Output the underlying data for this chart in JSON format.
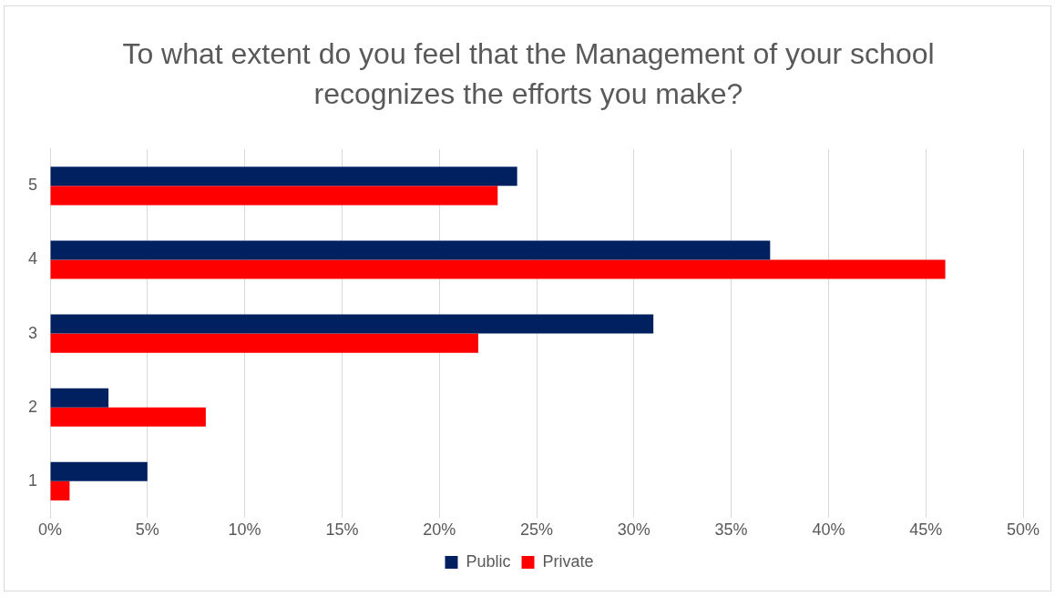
{
  "chart_data": {
    "type": "bar",
    "orientation": "horizontal",
    "title": "To what extent do you feel that the Management of your school recognizes the efforts you make?",
    "categories": [
      "5",
      "4",
      "3",
      "2",
      "1"
    ],
    "series": [
      {
        "name": "Public",
        "color": "#002060",
        "values": [
          24,
          37,
          31,
          3,
          5
        ]
      },
      {
        "name": "Private",
        "color": "#ff0000",
        "values": [
          23,
          46,
          22,
          8,
          1
        ]
      }
    ],
    "xlim": [
      0,
      50
    ],
    "xticks": [
      {
        "value": 0,
        "label": "0%"
      },
      {
        "value": 5,
        "label": "5%"
      },
      {
        "value": 10,
        "label": "10%"
      },
      {
        "value": 15,
        "label": "15%"
      },
      {
        "value": 20,
        "label": "20%"
      },
      {
        "value": 25,
        "label": "25%"
      },
      {
        "value": 30,
        "label": "30%"
      },
      {
        "value": 35,
        "label": "35%"
      },
      {
        "value": 40,
        "label": "40%"
      },
      {
        "value": 45,
        "label": "45%"
      },
      {
        "value": 50,
        "label": "50%"
      }
    ],
    "grid": "x",
    "legend": "bottom"
  }
}
